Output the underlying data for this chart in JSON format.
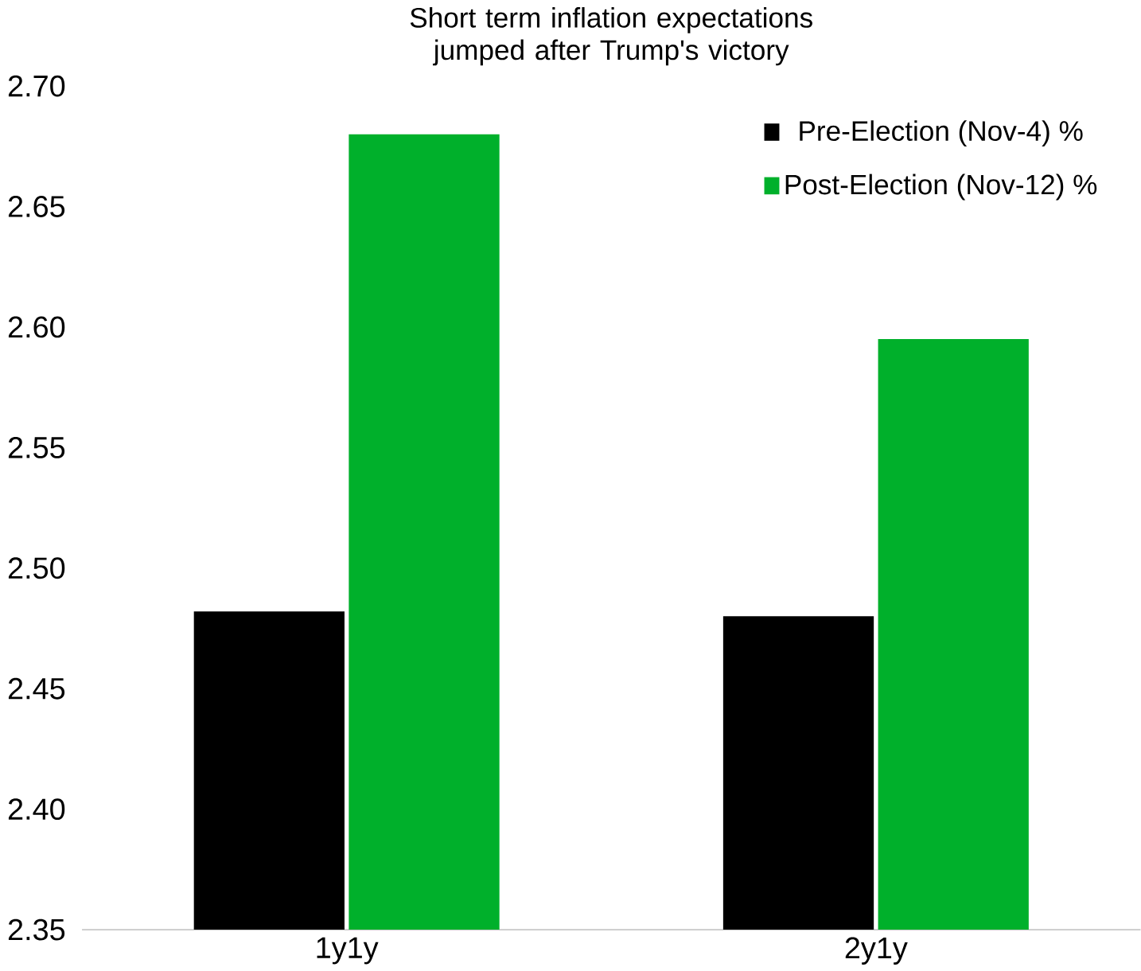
{
  "chart_data": {
    "type": "bar",
    "title": "Short term inflation expectations jumped after Trump's victory",
    "categories": [
      "1y1y",
      "2y1y"
    ],
    "series": [
      {
        "name": "Pre-Election (Nov-4) %",
        "color": "#000000",
        "values": [
          2.482,
          2.48
        ]
      },
      {
        "name": "Post-Election (Nov-12) %",
        "color": "#00b02b",
        "values": [
          2.68,
          2.595
        ]
      }
    ],
    "ylim": [
      2.35,
      2.7
    ],
    "yticks": [
      {
        "value": 2.35,
        "label": "2.35"
      },
      {
        "value": 2.4,
        "label": "2.40"
      },
      {
        "value": 2.45,
        "label": "2.45"
      },
      {
        "value": 2.5,
        "label": "2.50"
      },
      {
        "value": 2.55,
        "label": "2.55"
      },
      {
        "value": 2.6,
        "label": "2.60"
      },
      {
        "value": 2.65,
        "label": "2.65"
      },
      {
        "value": 2.7,
        "label": "2.70"
      }
    ],
    "grid": false,
    "legend": "top right"
  }
}
